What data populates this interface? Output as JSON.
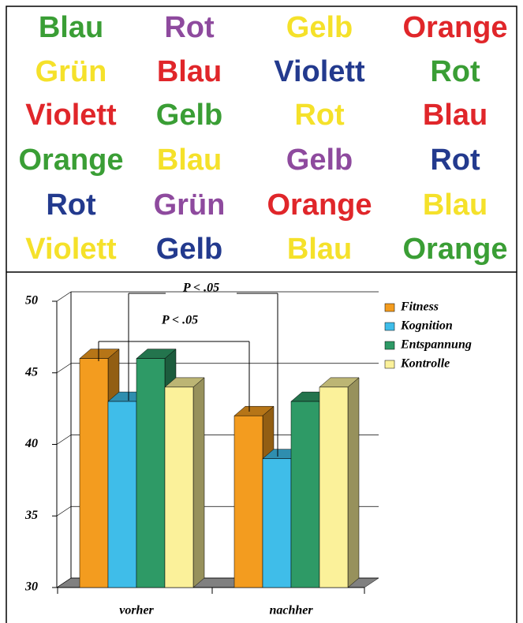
{
  "words": {
    "rows": [
      [
        {
          "text": "Blau",
          "color": "#3a9e35"
        },
        {
          "text": "Rot",
          "color": "#8e4a9e"
        },
        {
          "text": "Gelb",
          "color": "#f5e12a"
        },
        {
          "text": "Orange",
          "color": "#e0262a"
        }
      ],
      [
        {
          "text": "Grün",
          "color": "#f5e12a"
        },
        {
          "text": "Blau",
          "color": "#e0262a"
        },
        {
          "text": "Violett",
          "color": "#233a8e"
        },
        {
          "text": "Rot",
          "color": "#3a9e35"
        }
      ],
      [
        {
          "text": "Violett",
          "color": "#e0262a"
        },
        {
          "text": "Gelb",
          "color": "#3a9e35"
        },
        {
          "text": "Rot",
          "color": "#f5e12a"
        },
        {
          "text": "Blau",
          "color": "#e0262a"
        }
      ],
      [
        {
          "text": "Orange",
          "color": "#3a9e35"
        },
        {
          "text": "Blau",
          "color": "#f5e12a"
        },
        {
          "text": "Gelb",
          "color": "#8e4a9e"
        },
        {
          "text": "Rot",
          "color": "#233a8e"
        }
      ],
      [
        {
          "text": "Rot",
          "color": "#233a8e"
        },
        {
          "text": "Grün",
          "color": "#8e4a9e"
        },
        {
          "text": "Orange",
          "color": "#e0262a"
        },
        {
          "text": "Blau",
          "color": "#f5e12a"
        }
      ],
      [
        {
          "text": "Violett",
          "color": "#f5e12a"
        },
        {
          "text": "Gelb",
          "color": "#233a8e"
        },
        {
          "text": "Blau",
          "color": "#f5e12a"
        },
        {
          "text": "Orange",
          "color": "#3a9e35"
        }
      ]
    ]
  },
  "chart_data": {
    "type": "bar3d",
    "categories": [
      "vorher",
      "nachher"
    ],
    "series": [
      {
        "name": "Fitness",
        "color": "#f39c1f",
        "values": [
          46,
          42
        ]
      },
      {
        "name": "Kognition",
        "color": "#3fbde9",
        "values": [
          43,
          39
        ]
      },
      {
        "name": "Entspannung",
        "color": "#2e9a66",
        "values": [
          46,
          43
        ]
      },
      {
        "name": "Kontrolle",
        "color": "#fbf19a",
        "values": [
          44,
          44
        ]
      }
    ],
    "ylim": [
      30,
      50
    ],
    "yticks": [
      30,
      35,
      40,
      45,
      50
    ],
    "grid": true,
    "legend": "top-right",
    "annotations": [
      "P < .05",
      "P < .05"
    ]
  }
}
